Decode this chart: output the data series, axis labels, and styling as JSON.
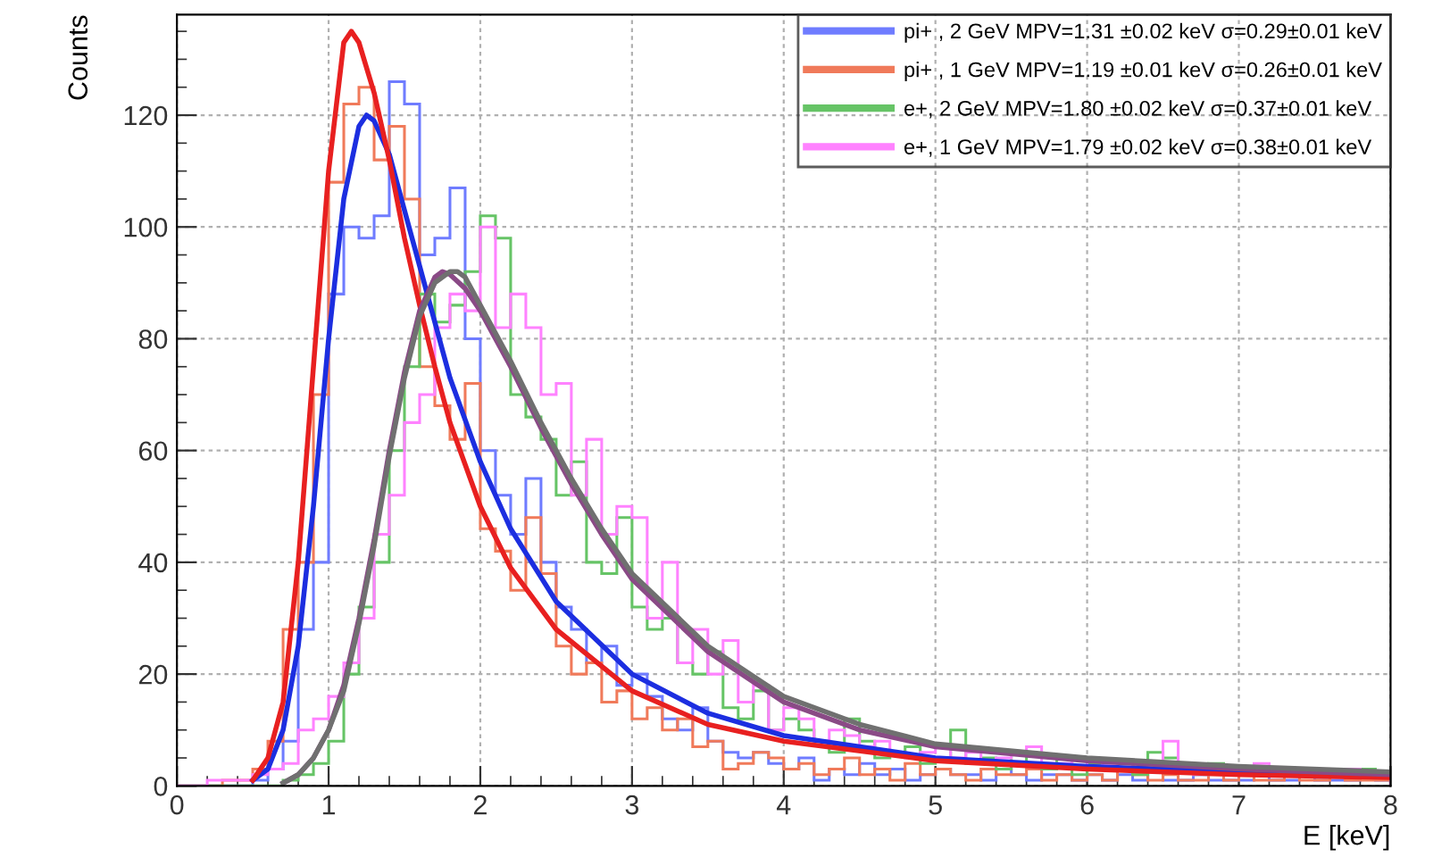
{
  "chart_data": {
    "type": "histogram",
    "xlabel": "E [keV]",
    "ylabel": "Counts",
    "bins": [
      0.0,
      0.1,
      0.2,
      0.3,
      0.4,
      0.5,
      0.6,
      0.7,
      0.8,
      0.9,
      1.0,
      1.1,
      1.2,
      1.3,
      1.4,
      1.5,
      1.6,
      1.7,
      1.8,
      1.9,
      2.0,
      2.1,
      2.2,
      2.3,
      2.4,
      2.5,
      2.6,
      2.7,
      2.8,
      2.9,
      3.0,
      3.1,
      3.2,
      3.3,
      3.4,
      3.5,
      3.6,
      3.7,
      3.8,
      3.9,
      4.0,
      4.1,
      4.2,
      4.3,
      4.4,
      4.5,
      4.6,
      4.7,
      4.8,
      4.9,
      5.0,
      5.1,
      5.2,
      5.3,
      5.4,
      5.5,
      5.6,
      5.7,
      5.8,
      5.9,
      6.0,
      6.1,
      6.2,
      6.3,
      6.4,
      6.5,
      6.6,
      6.7,
      6.8,
      6.9,
      7.0,
      7.1,
      7.2,
      7.3,
      7.4,
      7.5,
      7.6,
      7.7,
      7.8,
      7.9,
      8.0
    ],
    "series": [
      {
        "name": "pi+ , 2 GeV MPV=1.31 ±0.02 keV σ=0.29±0.01 keV",
        "color": "#6f7cff",
        "values": [
          0,
          0,
          0,
          0,
          0,
          1,
          3,
          8,
          28,
          40,
          88,
          100,
          98,
          102,
          126,
          122,
          95,
          98,
          107,
          80,
          60,
          52,
          45,
          55,
          40,
          32,
          28,
          22,
          25,
          18,
          20,
          16,
          12,
          10,
          14,
          8,
          6,
          5,
          6,
          4,
          3,
          5,
          1,
          3,
          2,
          4,
          2,
          3,
          1,
          2,
          3,
          2,
          2,
          1,
          3,
          2,
          1,
          2,
          2,
          1,
          2,
          1,
          2,
          1,
          3,
          1,
          1,
          2,
          1,
          1,
          1,
          2,
          1,
          1,
          2,
          1,
          1,
          1,
          2,
          1
        ]
      },
      {
        "name": "pi+ , 1 GeV MPV=1.19 ±0.01 keV σ=0.26±0.01 keV",
        "color": "#f07a5a",
        "values": [
          0,
          0,
          0,
          1,
          1,
          3,
          8,
          28,
          40,
          70,
          108,
          122,
          125,
          112,
          118,
          105,
          75,
          68,
          62,
          72,
          46,
          42,
          35,
          48,
          38,
          25,
          20,
          22,
          15,
          17,
          12,
          14,
          10,
          12,
          7,
          8,
          3,
          4,
          6,
          5,
          3,
          4,
          2,
          3,
          5,
          2,
          3,
          1,
          4,
          2,
          3,
          2,
          1,
          3,
          2,
          2,
          3,
          1,
          2,
          1,
          2,
          1,
          3,
          2,
          1,
          2,
          1,
          1,
          2,
          1,
          2,
          1,
          1,
          2,
          1,
          1,
          2,
          1,
          1,
          1
        ]
      },
      {
        "name": "e+, 2 GeV MPV=1.80 ±0.02 keV σ=0.37±0.01 keV",
        "color": "#66c466",
        "values": [
          0,
          0,
          0,
          0,
          0,
          0,
          0,
          1,
          2,
          4,
          8,
          20,
          32,
          40,
          60,
          75,
          88,
          83,
          86,
          92,
          102,
          98,
          70,
          66,
          62,
          52,
          58,
          40,
          38,
          48,
          32,
          28,
          30,
          22,
          20,
          24,
          14,
          12,
          17,
          10,
          12,
          10,
          8,
          6,
          12,
          8,
          5,
          6,
          7,
          4,
          5,
          10,
          4,
          5,
          3,
          6,
          4,
          3,
          5,
          2,
          4,
          3,
          3,
          2,
          6,
          5,
          3,
          2,
          4,
          3,
          3,
          2,
          2,
          3,
          2,
          3,
          2,
          2,
          3,
          2
        ]
      },
      {
        "name": "e+, 1 GeV MPV=1.79 ±0.02 keV σ=0.38±0.01 keV",
        "color": "#ff82ff",
        "values": [
          0,
          0,
          1,
          1,
          1,
          2,
          3,
          4,
          10,
          12,
          16,
          22,
          30,
          45,
          52,
          65,
          70,
          82,
          88,
          85,
          100,
          82,
          88,
          82,
          70,
          72,
          52,
          62,
          45,
          50,
          48,
          30,
          40,
          22,
          28,
          20,
          26,
          15,
          18,
          10,
          14,
          12,
          8,
          10,
          9,
          7,
          8,
          6,
          5,
          6,
          7,
          5,
          6,
          4,
          5,
          6,
          7,
          4,
          4,
          5,
          3,
          4,
          3,
          4,
          3,
          8,
          3,
          2,
          3,
          2,
          3,
          4,
          3,
          2,
          3,
          3,
          2,
          3,
          2,
          2
        ]
      },
      {
        "type": "line",
        "color": "#1c2ee0",
        "x": [
          0.5,
          0.6,
          0.7,
          0.8,
          0.9,
          1.0,
          1.1,
          1.2,
          1.25,
          1.3,
          1.4,
          1.5,
          1.6,
          1.7,
          1.8,
          2.0,
          2.2,
          2.5,
          3.0,
          3.5,
          4.0,
          5.0,
          6.0,
          7.0,
          8.0
        ],
        "values": [
          1,
          3,
          10,
          25,
          50,
          80,
          105,
          118,
          120,
          119,
          113,
          103,
          93,
          83,
          73,
          58,
          46,
          33,
          20,
          13,
          9,
          5,
          3.5,
          2.5,
          2
        ]
      },
      {
        "type": "line",
        "color": "#e82020",
        "x": [
          0.5,
          0.6,
          0.7,
          0.8,
          0.9,
          1.0,
          1.1,
          1.15,
          1.2,
          1.3,
          1.4,
          1.5,
          1.6,
          1.7,
          1.8,
          2.0,
          2.2,
          2.5,
          3.0,
          3.5,
          4.0,
          5.0,
          6.0,
          7.0,
          8.0
        ],
        "values": [
          1,
          5,
          15,
          40,
          75,
          110,
          133,
          135,
          133,
          124,
          112,
          98,
          86,
          75,
          65,
          50,
          39,
          28,
          17,
          11,
          8,
          4.5,
          3,
          2,
          1.5
        ]
      },
      {
        "type": "line",
        "color": "#8a4a86",
        "x": [
          0.7,
          0.8,
          0.9,
          1.0,
          1.1,
          1.2,
          1.3,
          1.4,
          1.5,
          1.6,
          1.7,
          1.75,
          1.8,
          1.9,
          2.0,
          2.2,
          2.4,
          2.6,
          2.8,
          3.0,
          3.5,
          4.0,
          4.5,
          5.0,
          6.0,
          7.0,
          8.0
        ],
        "values": [
          0.5,
          2,
          5,
          10,
          18,
          30,
          44,
          60,
          74,
          85,
          91,
          92,
          91.5,
          89,
          85,
          75,
          64,
          54,
          45,
          37,
          24,
          15,
          10,
          7,
          4.5,
          3,
          2
        ]
      },
      {
        "type": "line",
        "color": "#707070",
        "x": [
          0.7,
          0.8,
          0.9,
          1.0,
          1.1,
          1.2,
          1.3,
          1.4,
          1.5,
          1.6,
          1.7,
          1.8,
          1.85,
          1.9,
          2.0,
          2.2,
          2.4,
          2.6,
          2.8,
          3.0,
          3.5,
          4.0,
          4.5,
          5.0,
          6.0,
          7.0,
          8.0
        ],
        "values": [
          0.5,
          2,
          5,
          10,
          17,
          29,
          43,
          59,
          73,
          84,
          90,
          92,
          92,
          91,
          86,
          76,
          65,
          55,
          46,
          38,
          25,
          16,
          11,
          7.5,
          5,
          3.5,
          2.5
        ]
      }
    ],
    "xlim": [
      0,
      8
    ],
    "xticks": [
      0,
      1,
      2,
      3,
      4,
      5,
      6,
      7,
      8
    ],
    "ylim": [
      0,
      138
    ],
    "yticks": [
      0,
      20,
      40,
      60,
      80,
      100,
      120
    ],
    "grid": true,
    "legend": "top right"
  }
}
